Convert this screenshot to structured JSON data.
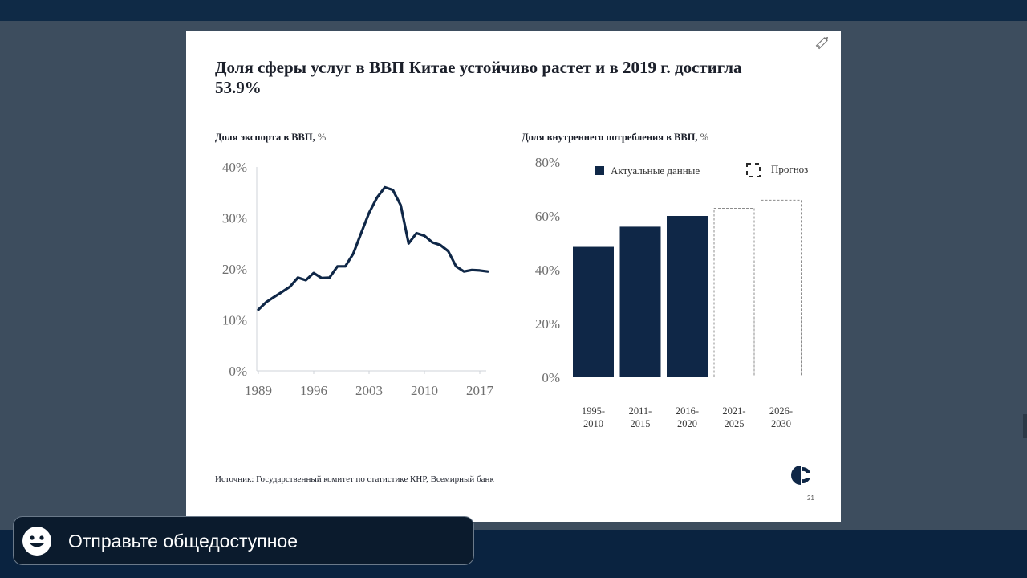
{
  "slide": {
    "title": "Доля сферы услуг в ВВП Китае устойчиво растет и в 2019 г. достигла 53.9%",
    "source": "Источник: Государственный комитет по статистике КНР, Всемирный банк",
    "page_number": "21"
  },
  "left_panel": {
    "title": "Доля экспорта в ВВП,",
    "unit": "%"
  },
  "right_panel": {
    "title": "Доля внутреннего потребления в ВВП,",
    "unit": "%"
  },
  "chat": {
    "text": "Отправьте общедоступное",
    "icon": "smiley-icon"
  },
  "colors": {
    "navy": "#0f2747",
    "frame": "#3d4d5e",
    "bar_top": "#0f2a46"
  },
  "chart_data": [
    {
      "type": "line",
      "title": "Доля экспорта в ВВП, %",
      "x": [
        1989,
        1990,
        1991,
        1992,
        1993,
        1994,
        1995,
        1996,
        1997,
        1998,
        1999,
        2000,
        2001,
        2002,
        2003,
        2004,
        2005,
        2006,
        2007,
        2008,
        2009,
        2010,
        2011,
        2012,
        2013,
        2014,
        2015,
        2016,
        2017,
        2018
      ],
      "values": [
        12,
        13.5,
        14.5,
        15.5,
        16.5,
        18.3,
        17.8,
        19.2,
        18.2,
        18.3,
        20.5,
        20.5,
        23.0,
        27.0,
        31.0,
        34.0,
        36.0,
        35.5,
        32.5,
        25.0,
        27.0,
        26.5,
        25.2,
        24.7,
        23.5,
        20.5,
        19.5,
        19.8,
        19.7,
        19.5
      ],
      "xticks": [
        1989,
        1996,
        2003,
        2010,
        2017
      ],
      "ytick_labels": [
        "0%",
        "10%",
        "20%",
        "30%",
        "40%"
      ],
      "ylim": [
        0,
        40
      ]
    },
    {
      "type": "bar",
      "title": "Доля внутреннего потребления в ВВП, %",
      "categories": [
        [
          "1995-",
          "2010"
        ],
        [
          "2011-",
          "2015"
        ],
        [
          "2016-",
          "2020"
        ],
        [
          "2021-",
          "2025"
        ],
        [
          "2026-",
          "2030"
        ]
      ],
      "values": [
        48.5,
        56,
        60,
        63,
        66
      ],
      "kinds": [
        "actual",
        "actual",
        "actual",
        "forecast",
        "forecast"
      ],
      "legend": [
        "Актуальные данные",
        "Прогноз"
      ],
      "legend_position": "top",
      "ytick_labels": [
        "0%",
        "20%",
        "40%",
        "60%",
        "80%"
      ],
      "ylim": [
        0,
        80
      ]
    }
  ]
}
